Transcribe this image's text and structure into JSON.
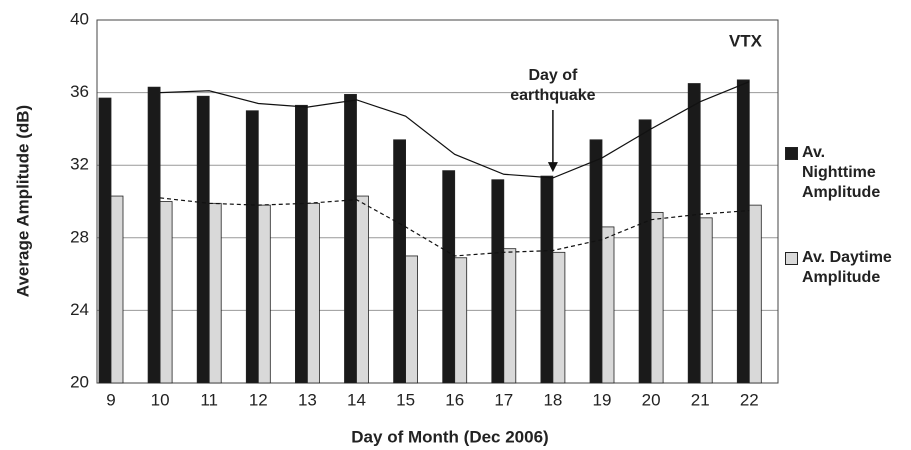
{
  "chart_data": {
    "type": "bar",
    "xlabel": "Day of Month (Dec 2006)",
    "ylabel": "Average Amplitude (dB)",
    "station": "VTX",
    "annotation": "Day of earthquake",
    "annotation_category": 9,
    "categories": [
      "9",
      "10",
      "11",
      "12",
      "13",
      "14",
      "15",
      "16",
      "17",
      "18",
      "19",
      "20",
      "21",
      "22"
    ],
    "series": [
      {
        "name": "Av. Nighttime Amplitude",
        "color": "#1a1a1a",
        "values": [
          35.7,
          36.3,
          35.8,
          35.0,
          35.3,
          35.9,
          33.4,
          31.7,
          31.2,
          31.4,
          33.4,
          34.5,
          36.5,
          36.7
        ]
      },
      {
        "name": "Av. Daytime Amplitude",
        "color": "#d9d9d9",
        "values": [
          30.3,
          30.0,
          29.9,
          29.8,
          29.9,
          30.3,
          27.0,
          26.9,
          27.4,
          27.2,
          28.6,
          29.4,
          29.1,
          29.8
        ]
      }
    ],
    "lines": [
      {
        "style": "solid",
        "values": [
          null,
          36.0,
          36.1,
          35.4,
          35.2,
          35.6,
          34.7,
          32.6,
          31.5,
          31.3,
          32.4,
          34.0,
          35.5,
          36.6
        ]
      },
      {
        "style": "dashed",
        "values": [
          null,
          30.2,
          29.9,
          29.8,
          29.9,
          30.1,
          28.6,
          27.0,
          27.2,
          27.3,
          27.9,
          29.0,
          29.3,
          29.5
        ]
      }
    ],
    "ylim": [
      20,
      40
    ],
    "yticks": [
      20,
      24,
      28,
      32,
      36,
      40
    ],
    "grid": true
  }
}
